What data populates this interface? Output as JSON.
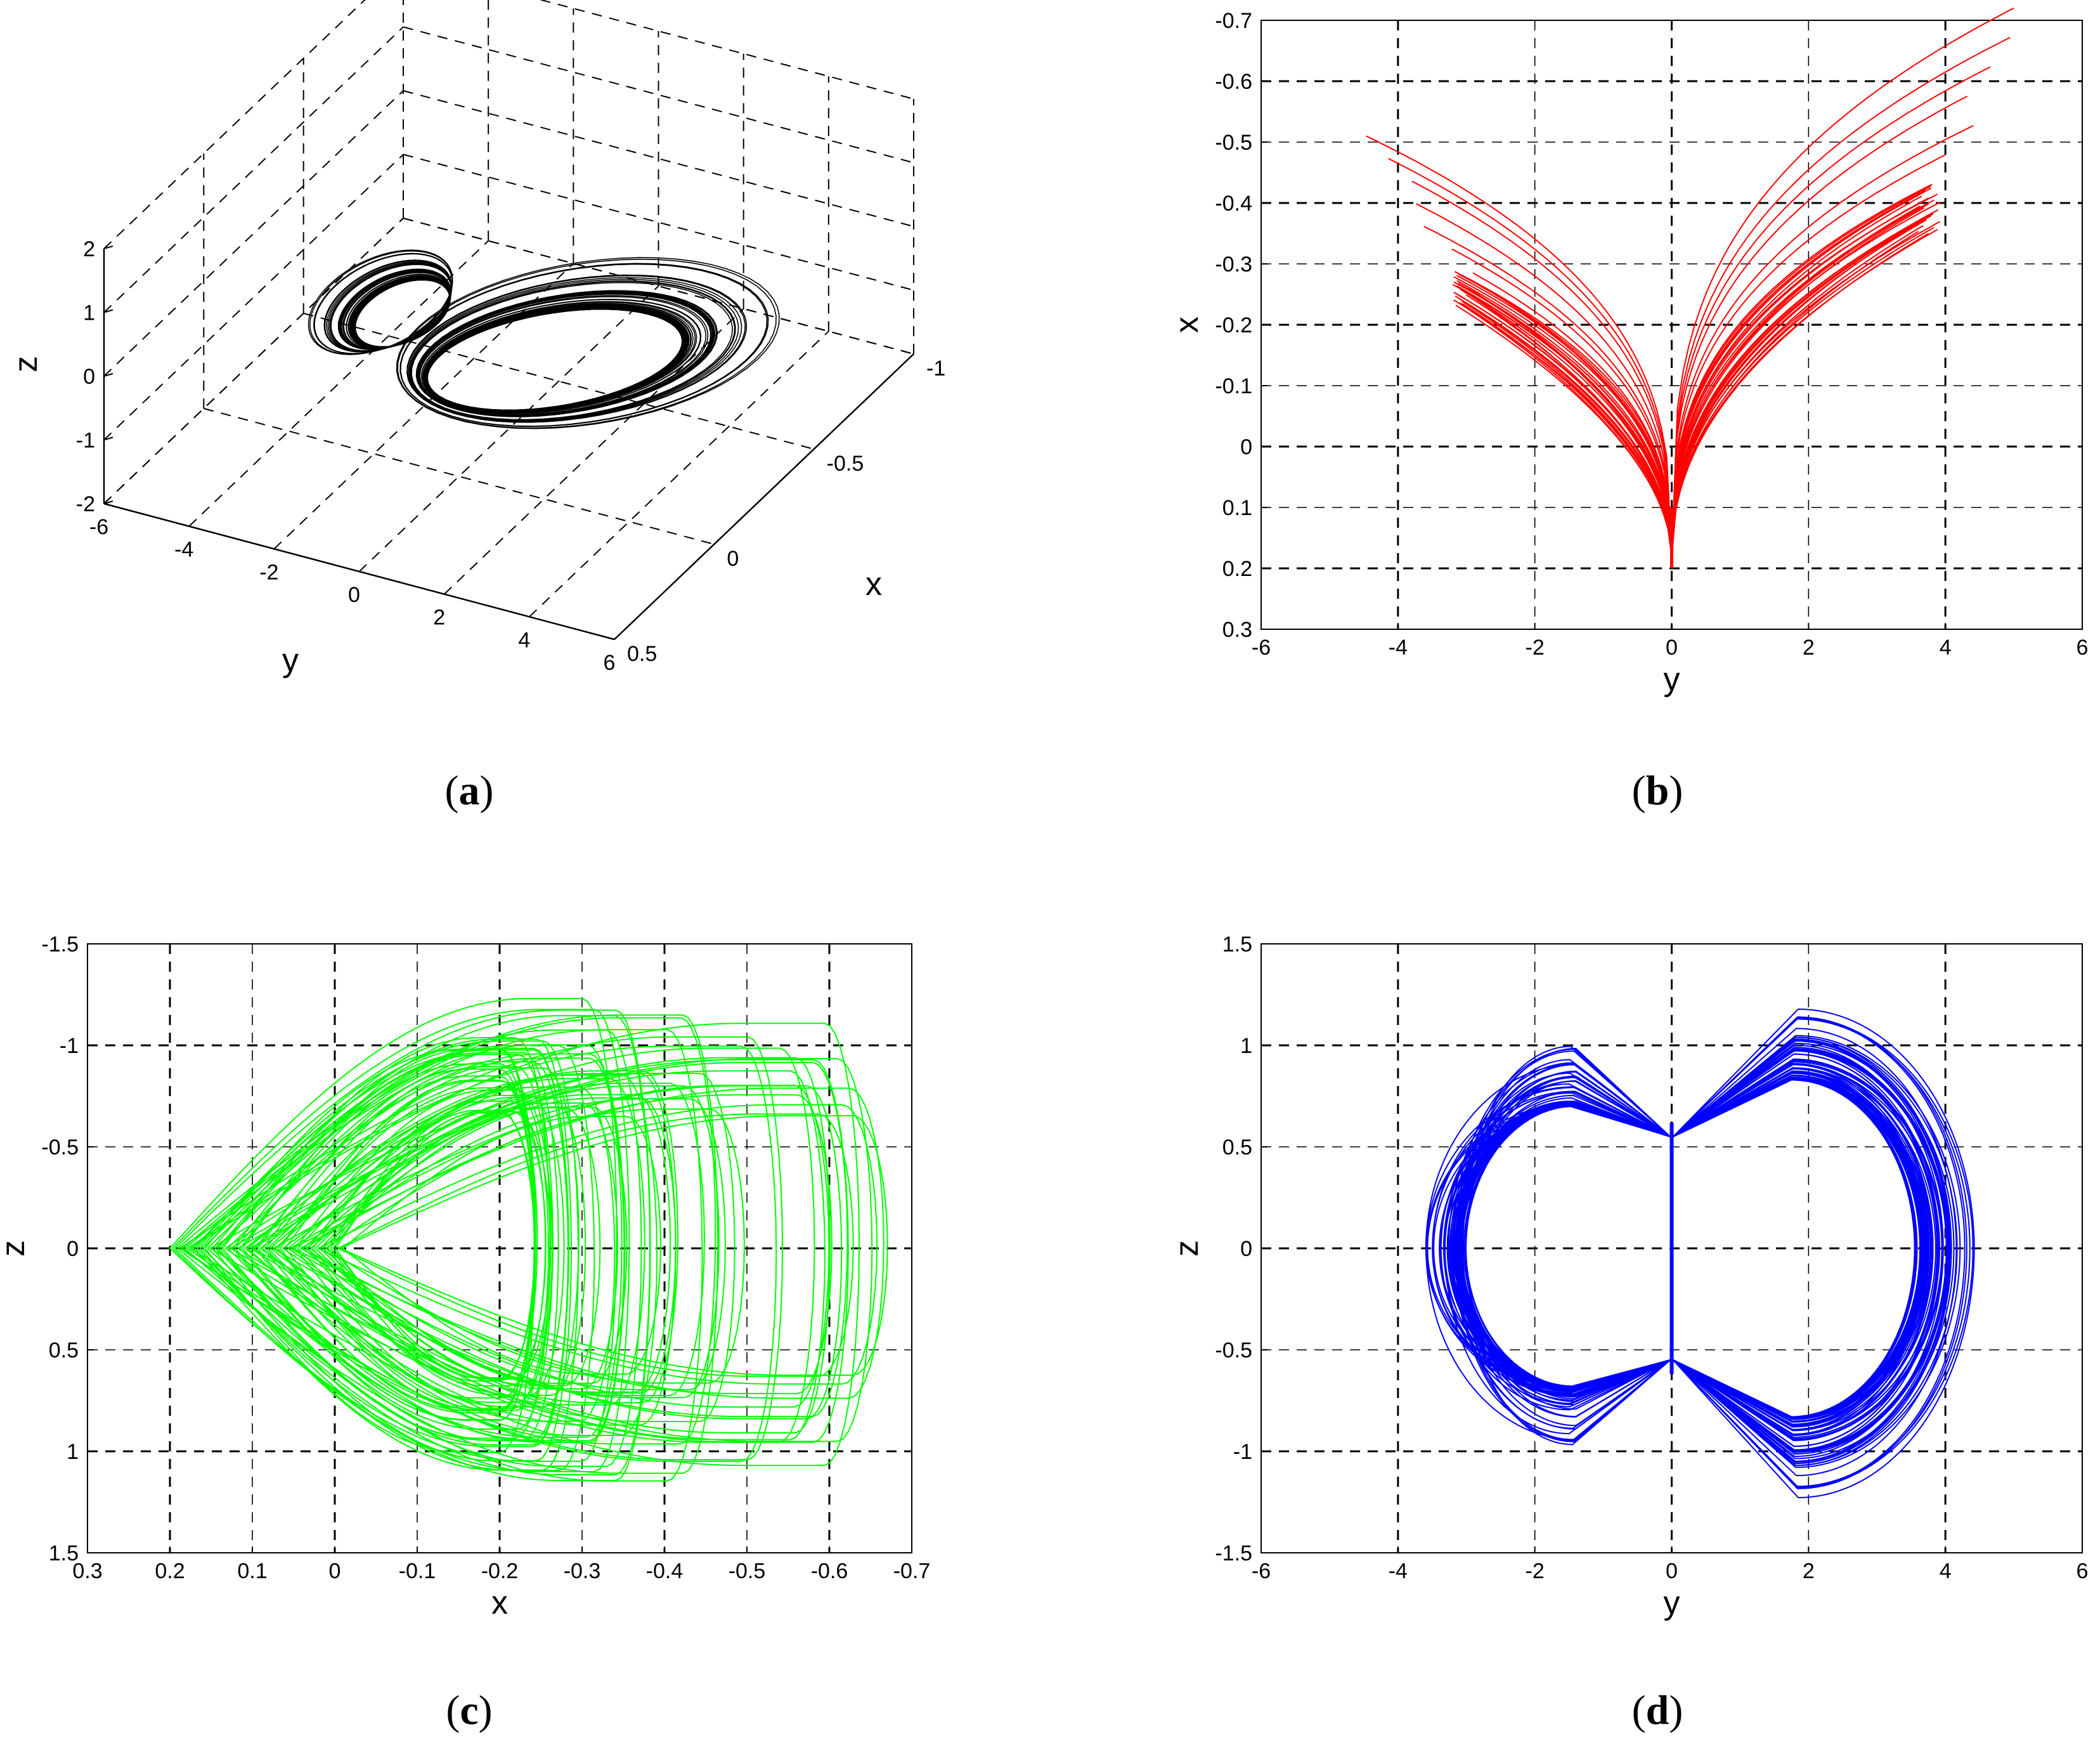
{
  "chart_data": [
    {
      "panel": "a",
      "type": "line",
      "projection": "3d",
      "caption_letter": "a",
      "xlabel": "x",
      "ylabel": "y",
      "zlabel": "z",
      "x_ticks": [
        "-1",
        "-0.5",
        "0",
        "0.5"
      ],
      "y_ticks": [
        "-6",
        "-4",
        "-2",
        "0",
        "2",
        "4",
        "6"
      ],
      "z_ticks": [
        "2",
        "1",
        "0",
        "-1",
        "-2"
      ],
      "xlim": [
        -1,
        0.5
      ],
      "ylim": [
        -6,
        6
      ],
      "zlim": [
        -2,
        2
      ],
      "grid": true,
      "series": [
        {
          "color": "#000000",
          "description_values": "3D attractor trajectory"
        }
      ]
    },
    {
      "panel": "b",
      "type": "line",
      "caption_letter": "b",
      "xlabel": "y",
      "ylabel": "x",
      "x_ticks": [
        "-6",
        "-4",
        "-2",
        "0",
        "2",
        "4",
        "6"
      ],
      "y_ticks": [
        "-0.7",
        "-0.6",
        "-0.5",
        "-0.4",
        "-0.3",
        "-0.2",
        "-0.1",
        "0",
        "0.1",
        "0.2",
        "0.3"
      ],
      "xlim": [
        -6,
        6
      ],
      "ylim": [
        -0.7,
        0.3
      ],
      "y_reversed": true,
      "grid": true,
      "series": [
        {
          "color": "#ff0000"
        }
      ]
    },
    {
      "panel": "c",
      "type": "line",
      "caption_letter": "c",
      "xlabel": "x",
      "ylabel": "z",
      "x_ticks": [
        "0.3",
        "0.2",
        "0.1",
        "0",
        "-0.1",
        "-0.2",
        "-0.3",
        "-0.4",
        "-0.5",
        "-0.6",
        "-0.7"
      ],
      "y_ticks": [
        "-1.5",
        "-1",
        "-0.5",
        "0",
        "0.5",
        "1",
        "1.5"
      ],
      "xlim": [
        0.3,
        -0.7
      ],
      "ylim": [
        -1.5,
        1.5
      ],
      "y_reversed": true,
      "grid": true,
      "series": [
        {
          "color": "#00ff00"
        }
      ]
    },
    {
      "panel": "d",
      "type": "line",
      "caption_letter": "d",
      "xlabel": "y",
      "ylabel": "z",
      "x_ticks": [
        "-6",
        "-4",
        "-2",
        "0",
        "2",
        "4",
        "6"
      ],
      "y_ticks": [
        "1.5",
        "1",
        "0.5",
        "0",
        "-0.5",
        "-1",
        "-1.5"
      ],
      "xlim": [
        -6,
        6
      ],
      "ylim": [
        -1.5,
        1.5
      ],
      "grid": true,
      "series": [
        {
          "color": "#0000ff"
        }
      ]
    }
  ]
}
